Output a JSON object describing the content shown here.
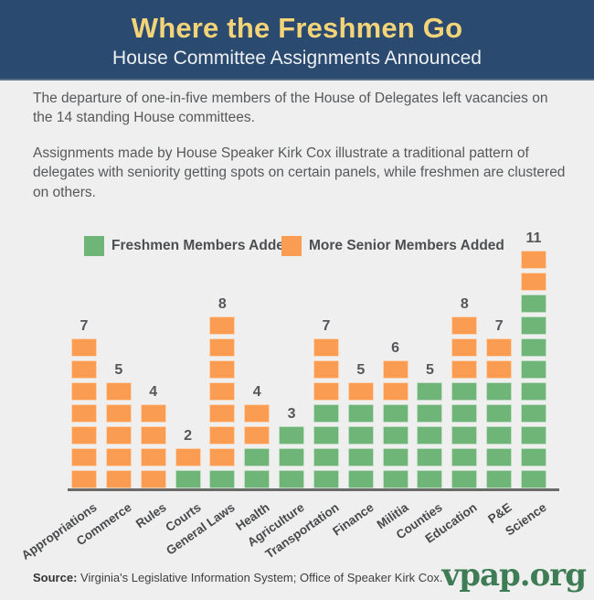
{
  "header": {
    "title": "Where the Freshmen Go",
    "subtitle": "House Committee Assignments Announced"
  },
  "intro": {
    "p1": "The departure of one-in-five members of the House of Delegates left vacancies on the 14 standing House committees.",
    "p2": "Assignments made by House Speaker Kirk Cox illustrate a traditional pattern of delegates with seniority getting spots on certain panels, while freshmen are clustered on others."
  },
  "legend": {
    "items": [
      {
        "label": "Freshmen Members Added",
        "color": "#6fb577"
      },
      {
        "label": "More Senior Members Added",
        "color": "#fa9c51"
      }
    ]
  },
  "chart_data": {
    "type": "bar",
    "subtype": "stacked-unit-blocks",
    "orientation": "vertical",
    "grid": false,
    "legend_position": "top",
    "categories": [
      "Appropriations",
      "Commerce",
      "Rules",
      "Courts",
      "General Laws",
      "Health",
      "Agriculture",
      "Transportation",
      "Finance",
      "Militia",
      "Counties",
      "Education",
      "P&E",
      "Science"
    ],
    "series": [
      {
        "name": "Freshmen Members Added",
        "color": "#6fb577",
        "values": [
          0,
          0,
          0,
          1,
          1,
          2,
          3,
          4,
          4,
          4,
          5,
          5,
          5,
          9
        ]
      },
      {
        "name": "More Senior Members Added",
        "color": "#fa9c51",
        "values": [
          7,
          5,
          4,
          1,
          7,
          2,
          0,
          3,
          1,
          2,
          0,
          3,
          2,
          2
        ]
      }
    ],
    "totals": [
      7,
      5,
      4,
      2,
      8,
      4,
      3,
      7,
      5,
      6,
      5,
      8,
      7,
      11
    ],
    "ylim": [
      0,
      11
    ],
    "title": "",
    "xlabel": "",
    "ylabel": ""
  },
  "footer": {
    "source_label": "Source:",
    "source_text": " Virginia's Legislative Information System; Office of Speaker Kirk Cox.",
    "brand": "vpap.org"
  },
  "colors": {
    "header_bg": "#2b4a6f",
    "title_gold": "#f3d478",
    "background": "#efefef",
    "axis": "#6a6a6a",
    "brand_green": "#3e7c55"
  }
}
